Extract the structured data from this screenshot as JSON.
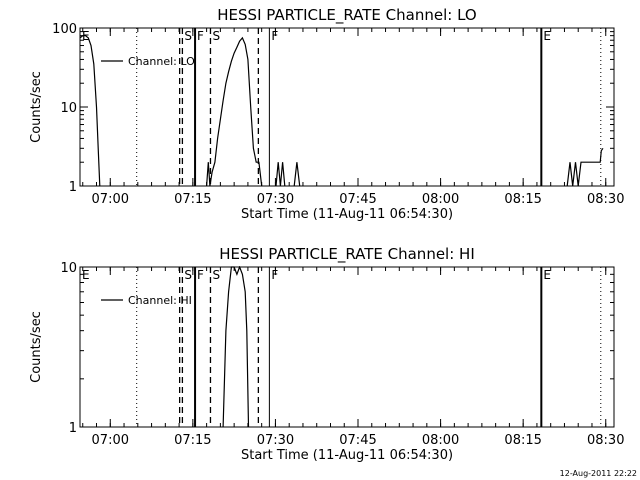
{
  "chart_data": [
    {
      "type": "line",
      "title": "HESSI PARTICLE_RATE Channel: LO",
      "xlabel": "Start Time (11-Aug-11 06:54:30)",
      "ylabel": "Counts/sec",
      "yscale": "log",
      "ylim": [
        1,
        100
      ],
      "y_ticks": [
        1,
        10,
        100
      ],
      "y_tick_labels": [
        "1",
        "10",
        "100"
      ],
      "xlim_minutes": [
        0,
        97
      ],
      "x_ticks_minutes": [
        5.5,
        20.5,
        35.5,
        50.5,
        65.5,
        80.5,
        95.5
      ],
      "x_tick_labels": [
        "07:00",
        "07:15",
        "07:30",
        "07:45",
        "08:00",
        "08:15",
        "08:30"
      ],
      "legend": {
        "placement": "top-left",
        "entries": [
          "Channel: LO"
        ]
      },
      "markers": [
        {
          "minute": 0.0,
          "style": "none",
          "label": "E"
        },
        {
          "minute": 10.3,
          "style": "dotted",
          "label": ""
        },
        {
          "minute": 18.1,
          "style": "dashed",
          "label": ""
        },
        {
          "minute": 18.6,
          "style": "dashed",
          "label": "S"
        },
        {
          "minute": 20.9,
          "style": "solid",
          "label": "F"
        },
        {
          "minute": 23.7,
          "style": "dashed",
          "label": "S"
        },
        {
          "minute": 32.4,
          "style": "dashed",
          "label": ""
        },
        {
          "minute": 34.4,
          "style": "solid-thin",
          "label": "F"
        },
        {
          "minute": 83.8,
          "style": "solid",
          "label": "E"
        },
        {
          "minute": 94.6,
          "style": "dotted",
          "label": ""
        }
      ],
      "series": [
        {
          "name": "Channel: LO",
          "segments": [
            [
              [
                0.0,
                75
              ],
              [
                0.5,
                80
              ],
              [
                1.0,
                80
              ],
              [
                1.5,
                75
              ],
              [
                2.0,
                60
              ],
              [
                2.5,
                35
              ],
              [
                3.0,
                10
              ],
              [
                3.3,
                3
              ],
              [
                3.6,
                1
              ]
            ],
            [
              [
                23.0,
                1
              ],
              [
                23.3,
                2
              ],
              [
                23.6,
                1
              ],
              [
                24.0,
                1.5
              ],
              [
                24.5,
                2
              ],
              [
                25.0,
                4
              ],
              [
                25.5,
                7
              ],
              [
                26.0,
                12
              ],
              [
                26.5,
                20
              ],
              [
                27.0,
                28
              ],
              [
                27.5,
                38
              ],
              [
                28.0,
                48
              ],
              [
                28.5,
                57
              ],
              [
                29.0,
                68
              ],
              [
                29.5,
                75
              ],
              [
                30.0,
                62
              ],
              [
                30.5,
                40
              ],
              [
                31.0,
                10
              ],
              [
                31.5,
                3
              ],
              [
                32.0,
                2
              ],
              [
                32.5,
                2
              ],
              [
                33.0,
                1
              ]
            ],
            [
              [
                35.6,
                1
              ],
              [
                36.0,
                2
              ],
              [
                36.4,
                1
              ],
              [
                36.8,
                2
              ],
              [
                37.2,
                1
              ]
            ],
            [
              [
                38.9,
                1
              ],
              [
                39.4,
                2
              ],
              [
                39.9,
                1
              ]
            ],
            [
              [
                88.5,
                1
              ],
              [
                89.0,
                2
              ],
              [
                89.5,
                1
              ],
              [
                90.0,
                2
              ],
              [
                90.5,
                1
              ],
              [
                91.0,
                2
              ],
              [
                92.0,
                2
              ],
              [
                93.0,
                2
              ],
              [
                94.0,
                2
              ],
              [
                94.5,
                2
              ],
              [
                94.7,
                2.8
              ],
              [
                95.0,
                3
              ]
            ]
          ]
        }
      ]
    },
    {
      "type": "line",
      "title": "HESSI PARTICLE_RATE Channel: HI",
      "xlabel": "Start Time (11-Aug-11 06:54:30)",
      "ylabel": "Counts/sec",
      "yscale": "log",
      "ylim": [
        1,
        10
      ],
      "y_ticks": [
        1,
        10
      ],
      "y_tick_labels": [
        "1",
        "10"
      ],
      "xlim_minutes": [
        0,
        97
      ],
      "x_ticks_minutes": [
        5.5,
        20.5,
        35.5,
        50.5,
        65.5,
        80.5,
        95.5
      ],
      "x_tick_labels": [
        "07:00",
        "07:15",
        "07:30",
        "07:45",
        "08:00",
        "08:15",
        "08:30"
      ],
      "legend": {
        "placement": "top-left",
        "entries": [
          "Channel: HI"
        ]
      },
      "markers": [
        {
          "minute": 0.0,
          "style": "none",
          "label": "E"
        },
        {
          "minute": 10.3,
          "style": "dotted",
          "label": ""
        },
        {
          "minute": 18.1,
          "style": "dashed",
          "label": ""
        },
        {
          "minute": 18.6,
          "style": "dashed",
          "label": "S"
        },
        {
          "minute": 20.9,
          "style": "solid",
          "label": "F"
        },
        {
          "minute": 23.7,
          "style": "dashed",
          "label": "S"
        },
        {
          "minute": 32.4,
          "style": "dashed",
          "label": ""
        },
        {
          "minute": 34.4,
          "style": "solid-thin",
          "label": "F"
        },
        {
          "minute": 83.8,
          "style": "solid",
          "label": "E"
        },
        {
          "minute": 94.6,
          "style": "dotted",
          "label": ""
        }
      ],
      "series": [
        {
          "name": "Channel: HI",
          "segments": [
            [
              [
                26.0,
                1
              ],
              [
                26.5,
                4
              ],
              [
                27.0,
                7
              ],
              [
                27.5,
                10
              ],
              [
                28.0,
                10
              ],
              [
                28.5,
                9
              ],
              [
                29.0,
                10
              ],
              [
                29.5,
                9
              ],
              [
                30.0,
                7
              ],
              [
                30.3,
                4
              ],
              [
                30.6,
                1
              ]
            ]
          ]
        }
      ]
    }
  ],
  "footer": {
    "timestamp": "12-Aug-2011 22:22"
  }
}
